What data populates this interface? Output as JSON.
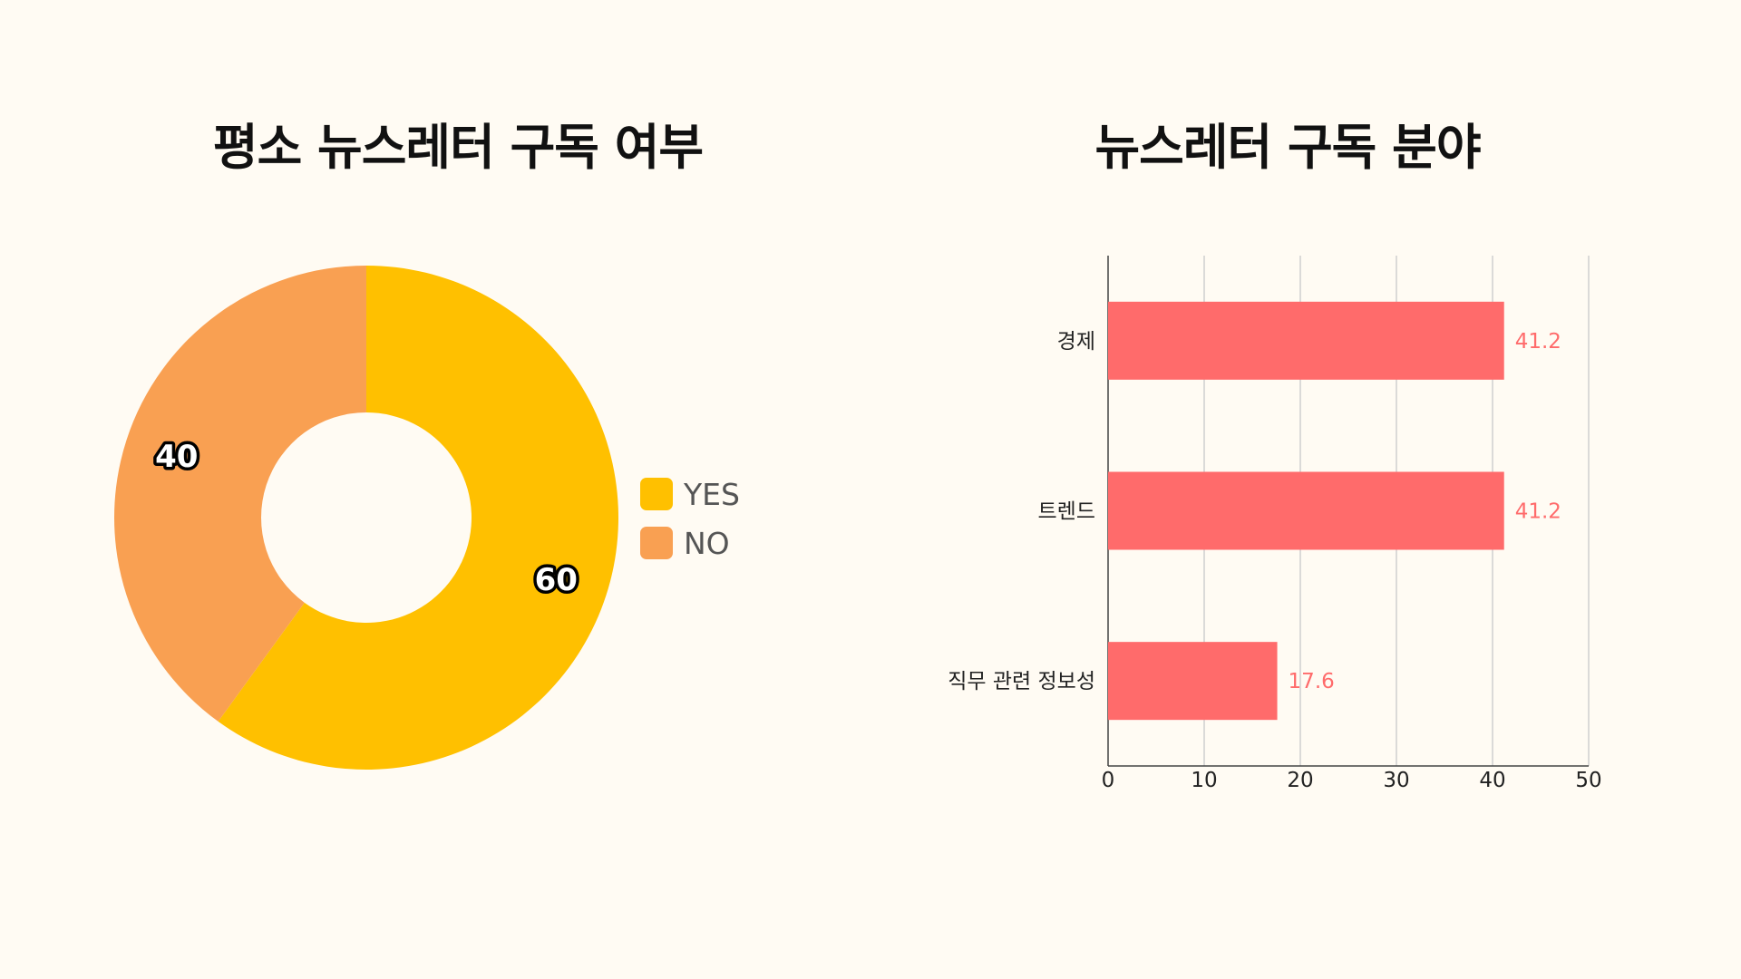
{
  "titles": {
    "left": "평소 뉴스레터 구독 여부",
    "right": "뉴스레터 구독 분야"
  },
  "chart_data": [
    {
      "type": "pie",
      "style": "donut",
      "title": "평소 뉴스레터 구독 여부",
      "categories": [
        "YES",
        "NO"
      ],
      "values": [
        60,
        40
      ],
      "colors": [
        "#ffc000",
        "#f9a052"
      ],
      "data_labels": [
        "60",
        "40"
      ],
      "legend": {
        "placement": "right",
        "entries": [
          "YES",
          "NO"
        ]
      }
    },
    {
      "type": "bar",
      "orientation": "horizontal",
      "title": "뉴스레터 구독 분야",
      "categories": [
        "경제",
        "트렌드",
        "직무 관련 정보성"
      ],
      "values": [
        41.2,
        41.2,
        17.6
      ],
      "data_labels": [
        "41.2",
        "41.2",
        "17.6"
      ],
      "xlim": [
        0,
        50
      ],
      "xticks": [
        "0",
        "10",
        "20",
        "30",
        "40",
        "50"
      ],
      "grid": true,
      "color": "#ff6b6b",
      "label_color": "#ff6b6b"
    }
  ]
}
